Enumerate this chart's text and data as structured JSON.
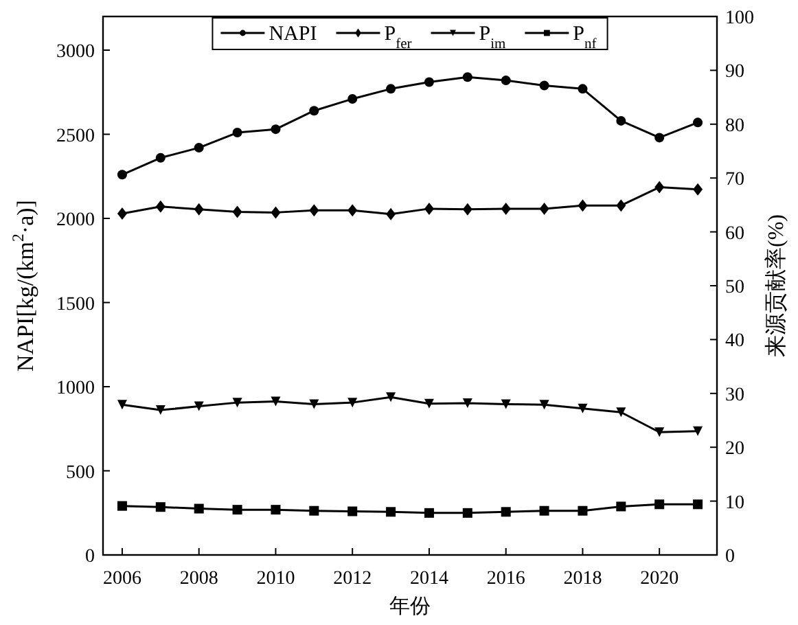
{
  "chart_data": {
    "type": "line",
    "xlabel": "年份",
    "ylabel": "NAPI[kg/(km$^{2}$·a)]",
    "y2label": "来源贡献率(%)",
    "x": [
      2006,
      2007,
      2008,
      2009,
      2010,
      2011,
      2012,
      2013,
      2014,
      2015,
      2016,
      2017,
      2018,
      2019,
      2020,
      2021
    ],
    "series": [
      {
        "name": "NAPI",
        "color": "#000000",
        "marker": "circle",
        "values": [
          2260,
          2360,
          2420,
          2510,
          2530,
          2640,
          2710,
          2770,
          2810,
          2840,
          2820,
          2790,
          2770,
          2580,
          2480,
          2570
        ]
      },
      {
        "name": "P$_{fer}$",
        "color": "#000000",
        "marker": "diamond",
        "axis": "y2",
        "values": [
          63.4,
          64.7,
          64.2,
          63.7,
          63.6,
          64.0,
          64.0,
          63.3,
          64.3,
          64.2,
          64.3,
          64.3,
          64.9,
          64.9,
          68.3,
          67.9
        ]
      },
      {
        "name": "P$_{im}$",
        "color": "#000000",
        "marker": "triangle",
        "axis": "y2",
        "values": [
          27.9,
          26.9,
          27.6,
          28.3,
          28.5,
          28.0,
          28.3,
          29.3,
          28.1,
          28.2,
          28.0,
          27.9,
          27.2,
          26.5,
          22.8,
          23.0
        ]
      },
      {
        "name": "P$_{nf}$",
        "color": "#000000",
        "marker": "square",
        "axis": "y2",
        "values": [
          9.1,
          8.9,
          8.6,
          8.4,
          8.4,
          8.2,
          8.1,
          8.0,
          7.8,
          7.8,
          8.0,
          8.2,
          8.2,
          9.0,
          9.4,
          9.4
        ]
      }
    ],
    "xlim": [
      2005.5,
      2021.5
    ],
    "xticks": [
      2006,
      2008,
      2010,
      2012,
      2014,
      2016,
      2018,
      2020
    ],
    "ylim": [
      0,
      3200
    ],
    "yticks": [
      0,
      500,
      1000,
      1500,
      2000,
      2500,
      3000
    ],
    "y2lim": [
      0,
      100
    ],
    "y2ticks": [
      0,
      10,
      20,
      30,
      40,
      50,
      60,
      70,
      80,
      90,
      100
    ],
    "legend": "top",
    "grid": false
  }
}
